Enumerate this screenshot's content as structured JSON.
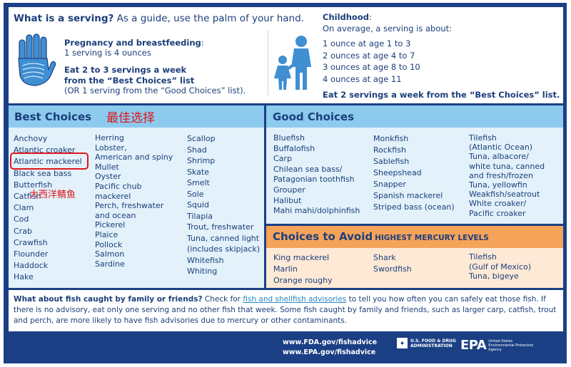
{
  "header": {
    "serving_bold": "What is a serving?",
    "serving_rest": " As a guide, use the palm of your hand.",
    "pregnancy_title": "Pregnancy and breastfeeding",
    "pregnancy_colon": ":",
    "pregnancy_serving": "1 serving is 4 ounces",
    "eat_line1": "Eat 2 to 3 servings a week",
    "eat_line2": "from the “Best Choices” list",
    "eat_line3": "(OR 1 serving from the “Good Choices” list).",
    "child_title": "Childhood",
    "child_colon": ":",
    "child_sub": "On average, a serving is about:",
    "child_lines": [
      "1 ounce at age 1 to 3",
      "2 ounces at age 4 to 7",
      "3 ounces at age 8 to 10",
      "4 ounces at age 11"
    ],
    "child_eat": "Eat 2 servings a week from the “Best Choices” list."
  },
  "best": {
    "title": "Best Choices",
    "title_cn": "最佳选择",
    "col1": [
      "Anchovy",
      "Atlantic croaker",
      "Atlantic mackerel",
      "Black sea bass",
      "Butterfish",
      "Catfish",
      "Clam",
      "Cod",
      "Crab",
      "Crawfish",
      "Flounder",
      "Haddock",
      "Hake"
    ],
    "col2": [
      "Herring",
      "Lobster,",
      "American and spiny",
      "Mullet",
      "Oyster",
      "Pacific chub",
      "mackerel",
      "Perch, freshwater",
      "and ocean",
      "Pickerel",
      "Plaice",
      "Pollock",
      "Salmon",
      "Sardine"
    ],
    "col3": [
      "Scallop",
      "Shad",
      "Shrimp",
      "Skate",
      "Smelt",
      "Sole",
      "Squid",
      "Tilapia",
      "Trout, freshwater",
      "Tuna, canned light",
      "(includes skipjack)",
      "Whitefish",
      "Whiting"
    ]
  },
  "good": {
    "title": "Good Choices",
    "col1": [
      "Bluefish",
      "Buffalofish",
      "Carp",
      "Chilean sea bass/",
      "Patagonian toothfish",
      "Grouper",
      "Halibut",
      "Mahi mahi/dolphinfish"
    ],
    "col2": [
      "Monkfish",
      "Rockfish",
      "Sablefish",
      "Sheepshead",
      "Snapper",
      "Spanish mackerel",
      "Striped bass (ocean)"
    ],
    "col3": [
      "Tilefish",
      "(Atlantic Ocean)",
      "Tuna, albacore/",
      "white tuna, canned",
      "and fresh/frozen",
      "Tuna, yellowfin",
      "Weakfish/seatrout",
      "White croaker/",
      "Pacific croaker"
    ]
  },
  "avoid": {
    "title": "Choices to Avoid",
    "subtitle": "HIGHEST MERCURY LEVELS",
    "col1": [
      "King mackerel",
      "Marlin",
      "Orange roughy"
    ],
    "col2": [
      "Shark",
      "Swordfish"
    ],
    "col3": [
      "Tilefish",
      "(Gulf of Mexico)",
      "Tuna, bigeye"
    ]
  },
  "family": {
    "bold": "What about fish caught by family or friends?",
    "text1": " Check for ",
    "link": "fish and shellfish advisories",
    "text2": " to tell you how often you can safely eat those fish. If there is no advisory, eat only one serving and no other fish that week. Some fish caught by family and friends, such as larger carp, catfish, trout and perch, are more likely to have fish advisories due to mercury or other contaminants."
  },
  "footer": {
    "url1": "www.FDA.gov/fishadvice",
    "url2": "www.EPA.gov/fishadvice",
    "fda_line1": "U.S. FOOD & DRUG",
    "fda_line2": "ADMINISTRATION",
    "epa_mark": "EPA",
    "epa_line1": "United States",
    "epa_line2": "Environmental Protection",
    "epa_line3": "Agency"
  },
  "annotation": {
    "cn_label": "大西洋鲭鱼"
  },
  "colors": {
    "navy": "#1b3f84",
    "best_header": "#8ccbee",
    "panel_bg": "#e2f1fa",
    "avoid_header": "#f6a35a",
    "avoid_bg": "#fde9d6",
    "annotation_red": "#e0161c"
  }
}
